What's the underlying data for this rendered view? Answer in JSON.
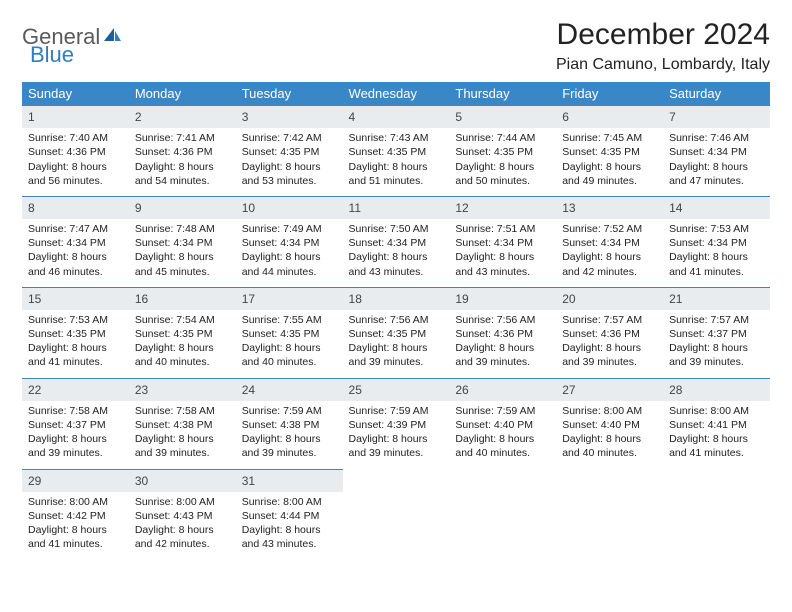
{
  "brand": {
    "part1": "General",
    "part2": "Blue"
  },
  "title": "December 2024",
  "location": "Pian Camuno, Lombardy, Italy",
  "colors": {
    "header_bg": "#3a87c8",
    "header_text": "#ffffff",
    "daynum_bg": "#e9ecef",
    "rule": "#3a87c8",
    "text": "#222222",
    "brand_gray": "#5a5a5a",
    "brand_blue": "#2f7ec0"
  },
  "weekdays": [
    "Sunday",
    "Monday",
    "Tuesday",
    "Wednesday",
    "Thursday",
    "Friday",
    "Saturday"
  ],
  "weeks": [
    [
      {
        "n": "1",
        "sr": "Sunrise: 7:40 AM",
        "ss": "Sunset: 4:36 PM",
        "d1": "Daylight: 8 hours",
        "d2": "and 56 minutes."
      },
      {
        "n": "2",
        "sr": "Sunrise: 7:41 AM",
        "ss": "Sunset: 4:36 PM",
        "d1": "Daylight: 8 hours",
        "d2": "and 54 minutes."
      },
      {
        "n": "3",
        "sr": "Sunrise: 7:42 AM",
        "ss": "Sunset: 4:35 PM",
        "d1": "Daylight: 8 hours",
        "d2": "and 53 minutes."
      },
      {
        "n": "4",
        "sr": "Sunrise: 7:43 AM",
        "ss": "Sunset: 4:35 PM",
        "d1": "Daylight: 8 hours",
        "d2": "and 51 minutes."
      },
      {
        "n": "5",
        "sr": "Sunrise: 7:44 AM",
        "ss": "Sunset: 4:35 PM",
        "d1": "Daylight: 8 hours",
        "d2": "and 50 minutes."
      },
      {
        "n": "6",
        "sr": "Sunrise: 7:45 AM",
        "ss": "Sunset: 4:35 PM",
        "d1": "Daylight: 8 hours",
        "d2": "and 49 minutes."
      },
      {
        "n": "7",
        "sr": "Sunrise: 7:46 AM",
        "ss": "Sunset: 4:34 PM",
        "d1": "Daylight: 8 hours",
        "d2": "and 47 minutes."
      }
    ],
    [
      {
        "n": "8",
        "sr": "Sunrise: 7:47 AM",
        "ss": "Sunset: 4:34 PM",
        "d1": "Daylight: 8 hours",
        "d2": "and 46 minutes."
      },
      {
        "n": "9",
        "sr": "Sunrise: 7:48 AM",
        "ss": "Sunset: 4:34 PM",
        "d1": "Daylight: 8 hours",
        "d2": "and 45 minutes."
      },
      {
        "n": "10",
        "sr": "Sunrise: 7:49 AM",
        "ss": "Sunset: 4:34 PM",
        "d1": "Daylight: 8 hours",
        "d2": "and 44 minutes."
      },
      {
        "n": "11",
        "sr": "Sunrise: 7:50 AM",
        "ss": "Sunset: 4:34 PM",
        "d1": "Daylight: 8 hours",
        "d2": "and 43 minutes."
      },
      {
        "n": "12",
        "sr": "Sunrise: 7:51 AM",
        "ss": "Sunset: 4:34 PM",
        "d1": "Daylight: 8 hours",
        "d2": "and 43 minutes."
      },
      {
        "n": "13",
        "sr": "Sunrise: 7:52 AM",
        "ss": "Sunset: 4:34 PM",
        "d1": "Daylight: 8 hours",
        "d2": "and 42 minutes."
      },
      {
        "n": "14",
        "sr": "Sunrise: 7:53 AM",
        "ss": "Sunset: 4:34 PM",
        "d1": "Daylight: 8 hours",
        "d2": "and 41 minutes."
      }
    ],
    [
      {
        "n": "15",
        "sr": "Sunrise: 7:53 AM",
        "ss": "Sunset: 4:35 PM",
        "d1": "Daylight: 8 hours",
        "d2": "and 41 minutes."
      },
      {
        "n": "16",
        "sr": "Sunrise: 7:54 AM",
        "ss": "Sunset: 4:35 PM",
        "d1": "Daylight: 8 hours",
        "d2": "and 40 minutes."
      },
      {
        "n": "17",
        "sr": "Sunrise: 7:55 AM",
        "ss": "Sunset: 4:35 PM",
        "d1": "Daylight: 8 hours",
        "d2": "and 40 minutes."
      },
      {
        "n": "18",
        "sr": "Sunrise: 7:56 AM",
        "ss": "Sunset: 4:35 PM",
        "d1": "Daylight: 8 hours",
        "d2": "and 39 minutes."
      },
      {
        "n": "19",
        "sr": "Sunrise: 7:56 AM",
        "ss": "Sunset: 4:36 PM",
        "d1": "Daylight: 8 hours",
        "d2": "and 39 minutes."
      },
      {
        "n": "20",
        "sr": "Sunrise: 7:57 AM",
        "ss": "Sunset: 4:36 PM",
        "d1": "Daylight: 8 hours",
        "d2": "and 39 minutes."
      },
      {
        "n": "21",
        "sr": "Sunrise: 7:57 AM",
        "ss": "Sunset: 4:37 PM",
        "d1": "Daylight: 8 hours",
        "d2": "and 39 minutes."
      }
    ],
    [
      {
        "n": "22",
        "sr": "Sunrise: 7:58 AM",
        "ss": "Sunset: 4:37 PM",
        "d1": "Daylight: 8 hours",
        "d2": "and 39 minutes."
      },
      {
        "n": "23",
        "sr": "Sunrise: 7:58 AM",
        "ss": "Sunset: 4:38 PM",
        "d1": "Daylight: 8 hours",
        "d2": "and 39 minutes."
      },
      {
        "n": "24",
        "sr": "Sunrise: 7:59 AM",
        "ss": "Sunset: 4:38 PM",
        "d1": "Daylight: 8 hours",
        "d2": "and 39 minutes."
      },
      {
        "n": "25",
        "sr": "Sunrise: 7:59 AM",
        "ss": "Sunset: 4:39 PM",
        "d1": "Daylight: 8 hours",
        "d2": "and 39 minutes."
      },
      {
        "n": "26",
        "sr": "Sunrise: 7:59 AM",
        "ss": "Sunset: 4:40 PM",
        "d1": "Daylight: 8 hours",
        "d2": "and 40 minutes."
      },
      {
        "n": "27",
        "sr": "Sunrise: 8:00 AM",
        "ss": "Sunset: 4:40 PM",
        "d1": "Daylight: 8 hours",
        "d2": "and 40 minutes."
      },
      {
        "n": "28",
        "sr": "Sunrise: 8:00 AM",
        "ss": "Sunset: 4:41 PM",
        "d1": "Daylight: 8 hours",
        "d2": "and 41 minutes."
      }
    ],
    [
      {
        "n": "29",
        "sr": "Sunrise: 8:00 AM",
        "ss": "Sunset: 4:42 PM",
        "d1": "Daylight: 8 hours",
        "d2": "and 41 minutes."
      },
      {
        "n": "30",
        "sr": "Sunrise: 8:00 AM",
        "ss": "Sunset: 4:43 PM",
        "d1": "Daylight: 8 hours",
        "d2": "and 42 minutes."
      },
      {
        "n": "31",
        "sr": "Sunrise: 8:00 AM",
        "ss": "Sunset: 4:44 PM",
        "d1": "Daylight: 8 hours",
        "d2": "and 43 minutes."
      },
      null,
      null,
      null,
      null
    ]
  ]
}
